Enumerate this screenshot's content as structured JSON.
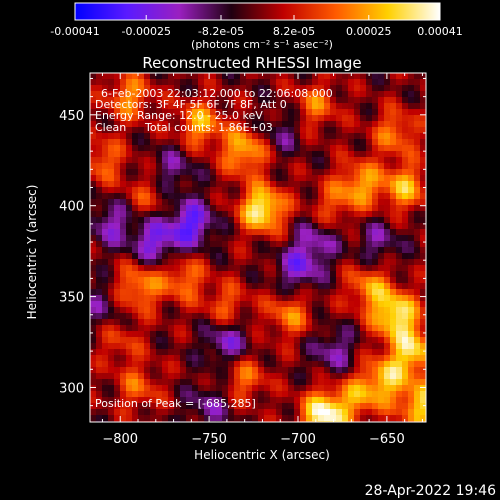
{
  "chart_data": {
    "type": "heatmap",
    "title": "Reconstructed RHESSI Image",
    "xlabel": "Heliocentric X (arcsec)",
    "ylabel": "Heliocentric Y (arcsec)",
    "xlim": [
      -817,
      -628
    ],
    "ylim": [
      281,
      473
    ],
    "xticks": [
      -800,
      -750,
      -700,
      -650
    ],
    "yticks": [
      300,
      350,
      400,
      450
    ],
    "colorbar": {
      "range": [
        -0.00041,
        0.00041
      ],
      "ticks": [
        "-0.00041",
        "-0.00025",
        "-8.2e-05",
        "8.2e-05",
        "0.00025",
        "0.00041"
      ],
      "tick_values": [
        -0.00041,
        -0.00025,
        -8.2e-05,
        8.2e-05,
        0.00025,
        0.00041
      ],
      "unit_label": "(photons cm⁻² s⁻¹ asec⁻²)",
      "colors": [
        "#0000ff",
        "#5a1aff",
        "#9a20c0",
        "#200010",
        "#c00000",
        "#ff5a00",
        "#ffd000",
        "#ffffff"
      ]
    },
    "annotations": {
      "time": "6-Feb-2003 22:03:12.000 to 22:06:08.000",
      "detectors": "Detectors: 3F 4F 5F 6F 7F 8F, Att 0",
      "energy": "Energy Range: 12.0 - 25.0 keV",
      "method": "Clean",
      "counts": "Total counts: 1.86E+03",
      "peak": "Position of Peak = [-685,285]"
    },
    "peak": [
      -685,
      285
    ],
    "sources": [
      {
        "x": -720,
        "y": 398,
        "amp": 0.00038
      },
      {
        "x": -730,
        "y": 430,
        "amp": 0.00028
      },
      {
        "x": -755,
        "y": 445,
        "amp": 0.00025
      },
      {
        "x": -795,
        "y": 460,
        "amp": 0.00022
      },
      {
        "x": -810,
        "y": 425,
        "amp": 0.00018
      },
      {
        "x": -785,
        "y": 405,
        "amp": 0.00012
      },
      {
        "x": -665,
        "y": 412,
        "amp": 0.00024
      },
      {
        "x": -640,
        "y": 410,
        "amp": 0.00026
      },
      {
        "x": -645,
        "y": 440,
        "amp": 0.0002
      },
      {
        "x": -690,
        "y": 455,
        "amp": 0.00018
      },
      {
        "x": -680,
        "y": 400,
        "amp": 0.00014
      },
      {
        "x": -790,
        "y": 355,
        "amp": 0.00024
      },
      {
        "x": -765,
        "y": 360,
        "amp": 0.0002
      },
      {
        "x": -740,
        "y": 345,
        "amp": 0.00016
      },
      {
        "x": -705,
        "y": 340,
        "amp": 0.0002
      },
      {
        "x": -660,
        "y": 355,
        "amp": 0.00022
      },
      {
        "x": -645,
        "y": 340,
        "amp": 0.00036
      },
      {
        "x": -635,
        "y": 320,
        "amp": 0.0003
      },
      {
        "x": -650,
        "y": 305,
        "amp": 0.00026
      },
      {
        "x": -685,
        "y": 285,
        "amp": 0.00041
      },
      {
        "x": -665,
        "y": 295,
        "amp": 0.0002
      },
      {
        "x": -730,
        "y": 305,
        "amp": 0.00018
      },
      {
        "x": -790,
        "y": 300,
        "amp": 0.00016
      },
      {
        "x": -800,
        "y": 325,
        "amp": 0.00012
      },
      {
        "x": -630,
        "y": 290,
        "amp": 0.0003
      },
      {
        "x": -760,
        "y": 390,
        "amp": -0.00028
      },
      {
        "x": -780,
        "y": 380,
        "amp": -0.00024
      },
      {
        "x": -700,
        "y": 365,
        "amp": -0.0002
      },
      {
        "x": -690,
        "y": 380,
        "amp": -0.00016
      },
      {
        "x": -740,
        "y": 325,
        "amp": -0.0002
      },
      {
        "x": -680,
        "y": 320,
        "amp": -0.00016
      },
      {
        "x": -805,
        "y": 390,
        "amp": -0.00018
      },
      {
        "x": -770,
        "y": 420,
        "amp": -0.00014
      },
      {
        "x": -710,
        "y": 440,
        "amp": -0.00012
      },
      {
        "x": -655,
        "y": 380,
        "amp": -0.00014
      },
      {
        "x": -810,
        "y": 345,
        "amp": -0.00012
      },
      {
        "x": -750,
        "y": 290,
        "amp": -0.00014
      }
    ]
  },
  "footer": {
    "timestamp": "28-Apr-2022 19:46"
  }
}
